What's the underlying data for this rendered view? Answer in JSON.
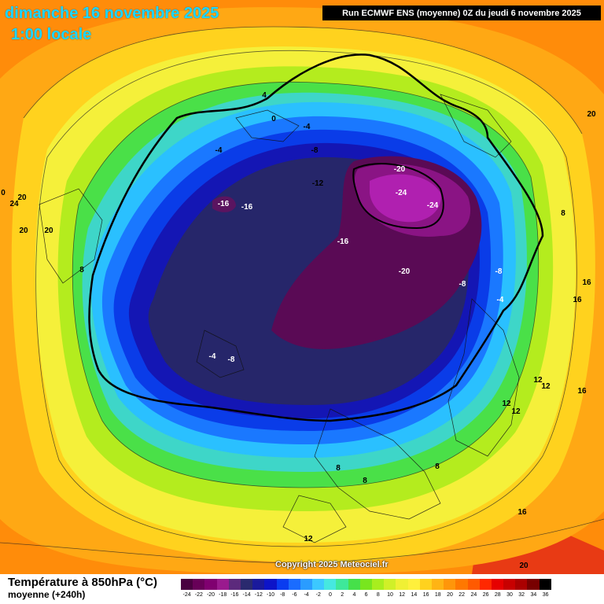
{
  "header": {
    "date": "dimanche 16 novembre 2025",
    "time": "1:00 locale",
    "run_info": "Run ECMWF ENS (moyenne) 0Z du jeudi 6 novembre 2025"
  },
  "footer": {
    "variable_title": "Température à 850hPa (°C)",
    "variable_subtitle": "moyenne  (+240h)",
    "copyright": "Copyright 2025 Meteociel.fr"
  },
  "legend": {
    "ticks": [
      "-24",
      "-22",
      "-20",
      "-18",
      "-16",
      "-14",
      "-12",
      "-10",
      "-8",
      "-6",
      "-4",
      "-2",
      "0",
      "2",
      "4",
      "6",
      "8",
      "10",
      "12",
      "14",
      "16",
      "18",
      "20",
      "22",
      "24",
      "26",
      "28",
      "30",
      "32",
      "34",
      "36"
    ],
    "colors": [
      "#4a0040",
      "#680058",
      "#800070",
      "#9a1a8e",
      "#5c2a7c",
      "#2a2a6e",
      "#1a1a9c",
      "#0d14c8",
      "#0a3cf0",
      "#1a6cff",
      "#2a9cff",
      "#3cc8ff",
      "#46e8e0",
      "#3ee89a",
      "#46e04a",
      "#78e61e",
      "#a8ee1e",
      "#d0f028",
      "#f0f034",
      "#fff03c",
      "#ffd21e",
      "#ffb414",
      "#ff960a",
      "#ff7800",
      "#ff5a00",
      "#ff2800",
      "#e60000",
      "#c80000",
      "#aa0000",
      "#780000",
      "#000000"
    ]
  },
  "map_labels": [
    {
      "text": "4"
    },
    {
      "text": "0"
    },
    {
      "text": "-4"
    },
    {
      "text": "-4"
    },
    {
      "text": "-8"
    },
    {
      "text": "-12"
    },
    {
      "text": "-20"
    },
    {
      "text": "-24"
    },
    {
      "text": "-24"
    },
    {
      "text": "-16"
    },
    {
      "text": "-16"
    },
    {
      "text": "-16"
    },
    {
      "text": "-20"
    },
    {
      "text": "-8"
    },
    {
      "text": "-8"
    },
    {
      "text": "-4"
    },
    {
      "text": "-4"
    },
    {
      "text": "-8"
    },
    {
      "text": "8"
    },
    {
      "text": "8"
    },
    {
      "text": "16"
    },
    {
      "text": "16"
    },
    {
      "text": "12"
    },
    {
      "text": "12"
    },
    {
      "text": "12"
    },
    {
      "text": "12"
    },
    {
      "text": "16"
    },
    {
      "text": "8"
    },
    {
      "text": "8"
    },
    {
      "text": "8"
    },
    {
      "text": "12"
    },
    {
      "text": "16"
    },
    {
      "text": "20"
    },
    {
      "text": "20"
    },
    {
      "text": "24"
    },
    {
      "text": "20"
    },
    {
      "text": "20"
    },
    {
      "text": "20"
    },
    {
      "text": "0"
    }
  ]
}
